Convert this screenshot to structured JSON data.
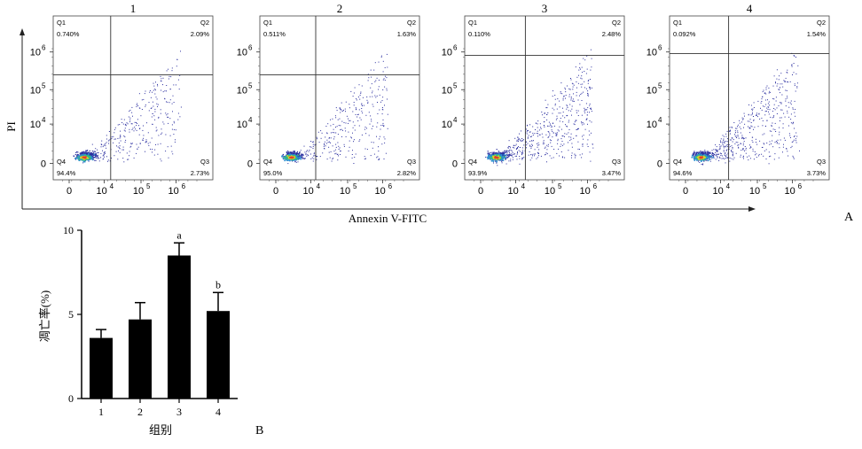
{
  "panel_a": {
    "label": "A",
    "ylabel": "PI",
    "xlabel": "Annexin V-FITC",
    "x_ticks": [
      "0",
      "10",
      "10",
      "10"
    ],
    "x_tick_sups": [
      "",
      "4",
      "5",
      "6"
    ],
    "y_ticks": [
      "0",
      "10",
      "10",
      "10"
    ],
    "y_tick_sups": [
      "",
      "4",
      "5",
      "6"
    ],
    "quadrant_names": [
      "Q1",
      "Q2",
      "Q3",
      "Q4"
    ],
    "plots": [
      {
        "title": "1",
        "q1": "0.740%",
        "q2": "2.09%",
        "q3": "2.73%",
        "q4": "94.4%",
        "gate_x": 0.36,
        "gate_y": 0.36
      },
      {
        "title": "2",
        "q1": "0.511%",
        "q2": "1.63%",
        "q3": "2.82%",
        "q4": "95.0%",
        "gate_x": 0.35,
        "gate_y": 0.36
      },
      {
        "title": "3",
        "q1": "0.110%",
        "q2": "2.48%",
        "q3": "3.47%",
        "q4": "93.9%",
        "gate_x": 0.38,
        "gate_y": 0.48
      },
      {
        "title": "4",
        "q1": "0.092%",
        "q2": "1.54%",
        "q3": "3.73%",
        "q4": "94.6%",
        "gate_x": 0.37,
        "gate_y": 0.49
      }
    ],
    "dot_colors": [
      "#2b2fa0",
      "#2c8fd0",
      "#37c07a",
      "#e0d02a",
      "#e0402a"
    ]
  },
  "panel_b": {
    "label": "B",
    "chart_data": {
      "type": "bar",
      "categories": [
        "1",
        "2",
        "3",
        "4"
      ],
      "values": [
        3.6,
        4.7,
        8.5,
        5.2
      ],
      "errors": [
        0.5,
        1.0,
        0.75,
        1.1
      ],
      "annotations": [
        "",
        "",
        "a",
        "b"
      ],
      "xlabel": "组别",
      "ylabel": "凋亡率(%)",
      "ylim": [
        0,
        10
      ],
      "yticks": [
        0,
        5,
        10
      ],
      "bar_color": "#000000"
    }
  }
}
